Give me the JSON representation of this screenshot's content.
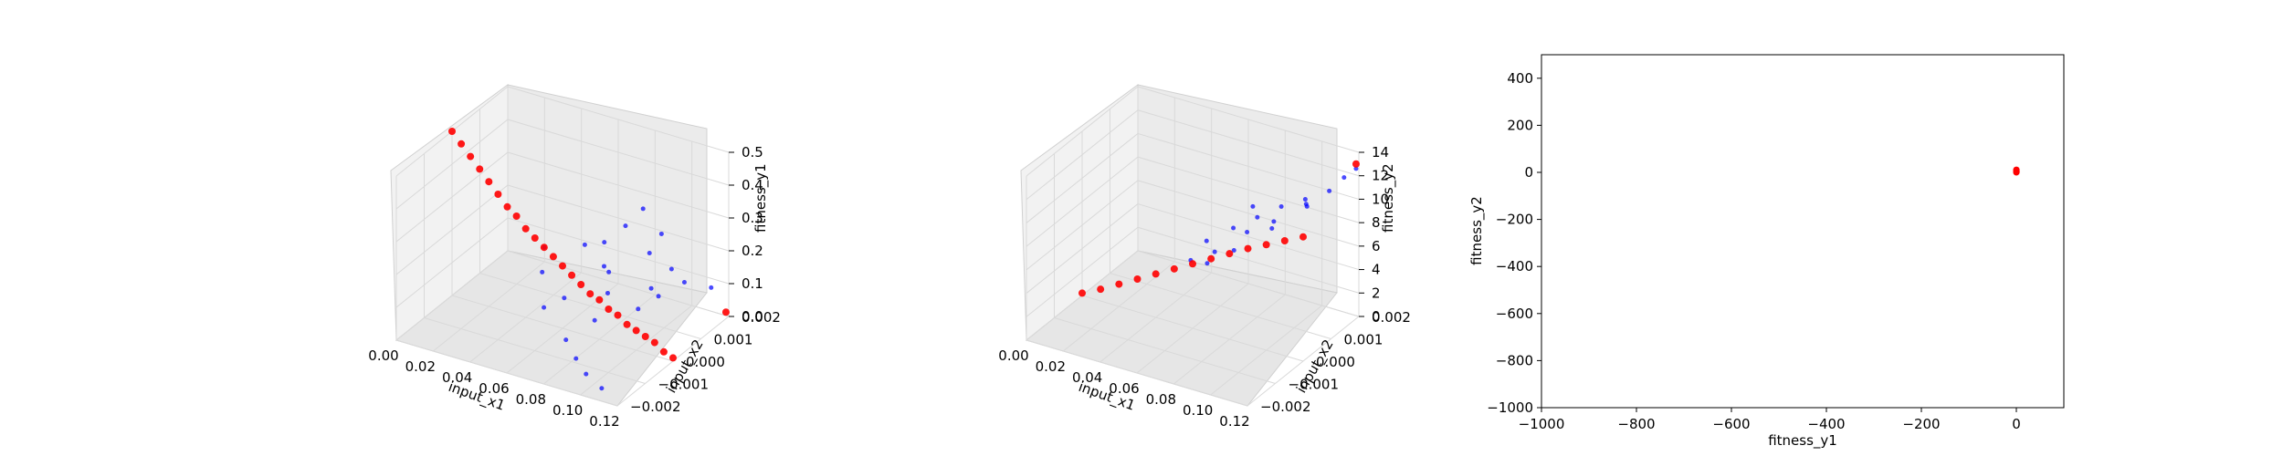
{
  "chart_data": [
    {
      "type": "scatter",
      "projection": "3d",
      "xlabel": "input_x1",
      "ylabel": "input_x2",
      "zlabel": "fitness_y1",
      "xticks": [
        "0.00",
        "0.02",
        "0.04",
        "0.06",
        "0.08",
        "0.10",
        "0.12"
      ],
      "yticks": [
        "−0.002",
        "−0.001",
        "0.000",
        "0.001",
        "0.002"
      ],
      "zticks": [
        "0.0",
        "0.1",
        "0.2",
        "0.3",
        "0.4",
        "0.5"
      ],
      "xlim": [
        0,
        0.12
      ],
      "ylim": [
        -0.002,
        0.002
      ],
      "zlim": [
        0,
        0.5
      ],
      "grid": true,
      "series": [
        {
          "color": "#0000ff",
          "marker_size": "small",
          "description_points": [
            [
              0.06,
              0.0015,
              0.16
            ],
            [
              0.07,
              0.001,
              0.12
            ],
            [
              0.075,
              0.0005,
              0.18
            ],
            [
              0.08,
              0.0018,
              0.14
            ],
            [
              0.085,
              -0.0005,
              0.1
            ],
            [
              0.09,
              0.0012,
              0.09
            ],
            [
              0.095,
              0.0016,
              0.13
            ],
            [
              0.1,
              0.0008,
              0.11
            ],
            [
              0.065,
              -0.001,
              0.14
            ],
            [
              0.07,
              0.0016,
              0.22
            ],
            [
              0.08,
              -0.0012,
              0.08
            ],
            [
              0.09,
              -0.0015,
              0.06
            ],
            [
              0.1,
              -0.0018,
              0.05
            ],
            [
              0.11,
              -0.0019,
              0.03
            ],
            [
              0.075,
              0.0019,
              0.26
            ],
            [
              0.085,
              0.0019,
              0.2
            ],
            [
              0.095,
              0.0004,
              0.09
            ],
            [
              0.06,
              0.0008,
              0.2
            ],
            [
              0.055,
              -0.0004,
              0.19
            ],
            [
              0.05,
              0.0,
              0.23
            ],
            [
              0.105,
              0.0014,
              0.12
            ],
            [
              0.115,
              0.0017,
              0.1
            ],
            [
              0.08,
              0.0003,
              0.12
            ],
            [
              0.07,
              -0.0006,
              0.15
            ]
          ]
        },
        {
          "color": "#ff0000",
          "marker_size": "large",
          "description_points": [
            [
              0.0,
              0.0,
              0.5
            ],
            [
              0.005,
              0.0,
              0.47
            ],
            [
              0.01,
              0.0,
              0.44
            ],
            [
              0.015,
              0.0,
              0.41
            ],
            [
              0.02,
              0.0,
              0.38
            ],
            [
              0.025,
              0.0,
              0.35
            ],
            [
              0.03,
              0.0,
              0.32
            ],
            [
              0.035,
              0.0,
              0.3
            ],
            [
              0.04,
              0.0,
              0.27
            ],
            [
              0.045,
              0.0,
              0.25
            ],
            [
              0.05,
              0.0,
              0.23
            ],
            [
              0.055,
              0.0,
              0.21
            ],
            [
              0.06,
              0.0,
              0.19
            ],
            [
              0.065,
              0.0,
              0.17
            ],
            [
              0.07,
              0.0,
              0.15
            ],
            [
              0.075,
              0.0,
              0.13
            ],
            [
              0.08,
              0.0,
              0.12
            ],
            [
              0.085,
              0.0,
              0.1
            ],
            [
              0.09,
              0.0,
              0.09
            ],
            [
              0.095,
              0.0,
              0.07
            ],
            [
              0.1,
              0.0,
              0.06
            ],
            [
              0.105,
              0.0,
              0.05
            ],
            [
              0.11,
              0.0,
              0.04
            ],
            [
              0.115,
              0.0,
              0.02
            ],
            [
              0.12,
              0.0,
              0.01
            ],
            [
              0.12,
              0.0019,
              0.02
            ]
          ]
        }
      ]
    },
    {
      "type": "scatter",
      "projection": "3d",
      "xlabel": "input_x1",
      "ylabel": "input_x2",
      "zlabel": "fitness_y2",
      "xticks": [
        "0.00",
        "0.02",
        "0.04",
        "0.06",
        "0.08",
        "0.10",
        "0.12"
      ],
      "yticks": [
        "−0.002",
        "−0.001",
        "0.000",
        "0.001",
        "0.002"
      ],
      "zticks": [
        "0",
        "2",
        "4",
        "6",
        "8",
        "10",
        "12",
        "14"
      ],
      "xlim": [
        0,
        0.12
      ],
      "ylim": [
        -0.002,
        0.002
      ],
      "zlim": [
        0,
        14
      ],
      "grid": true,
      "series": [
        {
          "color": "#0000ff",
          "marker_size": "small",
          "description_points": [
            [
              0.06,
              0.0005,
              6.5
            ],
            [
              0.07,
              0.0008,
              7.5
            ],
            [
              0.08,
              0.001,
              8.5
            ],
            [
              0.09,
              0.0012,
              9.5
            ],
            [
              0.1,
              0.0014,
              10.2
            ],
            [
              0.11,
              0.0016,
              11.0
            ],
            [
              0.065,
              -0.0004,
              6.8
            ],
            [
              0.075,
              -0.0002,
              7.6
            ],
            [
              0.085,
              0.0003,
              8.8
            ],
            [
              0.095,
              0.0006,
              9.6
            ],
            [
              0.105,
              0.0011,
              10.6
            ],
            [
              0.115,
              0.0018,
              12.0
            ],
            [
              0.07,
              0.0015,
              8.0
            ],
            [
              0.08,
              -0.0008,
              8.0
            ],
            [
              0.09,
              -0.0005,
              9.0
            ],
            [
              0.1,
              0.0002,
              10.0
            ],
            [
              0.11,
              0.0008,
              11.2
            ],
            [
              0.12,
              0.0019,
              12.8
            ]
          ]
        },
        {
          "color": "#ff0000",
          "marker_size": "large",
          "description_points": [
            [
              0.0,
              0.0,
              0.2
            ],
            [
              0.01,
              0.0,
              1.0
            ],
            [
              0.02,
              0.0,
              1.9
            ],
            [
              0.03,
              0.0,
              2.8
            ],
            [
              0.04,
              0.0,
              3.7
            ],
            [
              0.05,
              0.0,
              4.6
            ],
            [
              0.06,
              0.0,
              5.5
            ],
            [
              0.07,
              0.0,
              6.4
            ],
            [
              0.08,
              0.0,
              7.3
            ],
            [
              0.09,
              0.0,
              8.2
            ],
            [
              0.1,
              0.0,
              9.0
            ],
            [
              0.11,
              0.0,
              9.8
            ],
            [
              0.12,
              0.0,
              10.6
            ],
            [
              0.12,
              0.0019,
              13.2
            ]
          ]
        }
      ]
    },
    {
      "type": "scatter",
      "xlabel": "fitness_y1",
      "ylabel": "fitness_y2",
      "xticks": [
        "−1000",
        "−800",
        "−600",
        "−400",
        "−200",
        "0"
      ],
      "yticks": [
        "−1000",
        "−800",
        "−600",
        "−400",
        "−200",
        "0",
        "200",
        "400"
      ],
      "xlim": [
        -1000,
        100
      ],
      "ylim": [
        -1000,
        500
      ],
      "grid": false,
      "series": [
        {
          "color": "#ff0000",
          "points": [
            [
              0,
              0
            ],
            [
              0.2,
              5
            ],
            [
              0.1,
              8
            ],
            [
              0.3,
              2
            ],
            [
              0.1,
              11
            ],
            [
              0.2,
              3
            ]
          ]
        }
      ]
    }
  ]
}
